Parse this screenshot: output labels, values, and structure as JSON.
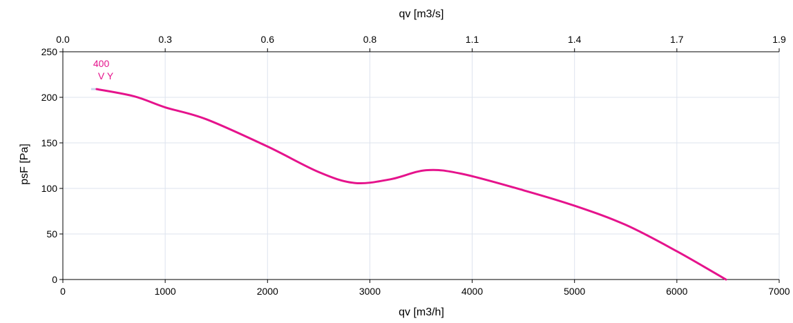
{
  "chart_data": {
    "type": "line",
    "xlabel": "qv [m3/h]",
    "ylabel": "psF [Pa]",
    "x2label": "qv [m3/s]",
    "xlim": [
      0,
      7000
    ],
    "ylim": [
      0,
      250
    ],
    "x_ticks": [
      0,
      1000,
      2000,
      3000,
      4000,
      5000,
      6000,
      7000
    ],
    "y_ticks": [
      0,
      50,
      100,
      150,
      200,
      250
    ],
    "x2_tick_labels": [
      "0.0",
      "0.3",
      "0.6",
      "0.8",
      "1.1",
      "1.4",
      "1.7",
      "1.9"
    ],
    "grid": true,
    "series": [
      {
        "name": "400",
        "annotation": "V Y",
        "color": "#e5138c",
        "x": [
          330,
          700,
          1000,
          1400,
          2000,
          2500,
          2850,
          3200,
          3550,
          3900,
          4500,
          5000,
          5500,
          6000,
          6480
        ],
        "y": [
          209,
          201,
          189,
          176,
          146,
          118,
          106,
          110,
          120,
          116,
          98,
          81,
          60,
          31,
          0
        ]
      }
    ]
  }
}
